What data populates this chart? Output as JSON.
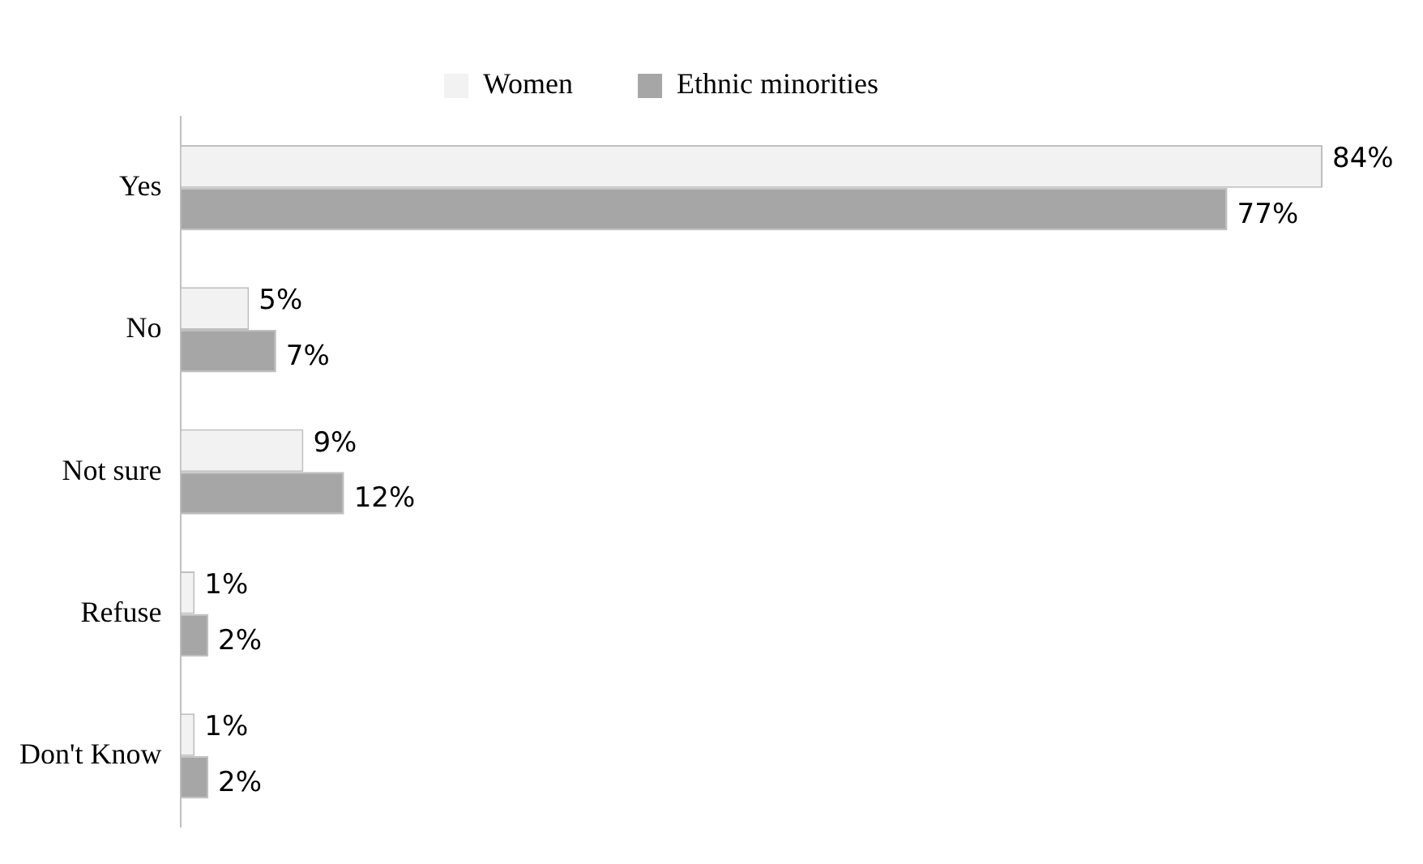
{
  "chart_data": {
    "type": "bar",
    "orientation": "horizontal",
    "categories": [
      "Yes",
      "No",
      "Not sure",
      "Refuse",
      "Don't Know"
    ],
    "series": [
      {
        "name": "Women",
        "color": "#f2f2f2",
        "values": [
          84,
          5,
          9,
          1,
          1
        ],
        "value_labels": [
          "84%",
          "5%",
          "9%",
          "1%",
          "1%"
        ]
      },
      {
        "name": "Ethnic minorities",
        "color": "#a6a6a6",
        "values": [
          77,
          7,
          12,
          2,
          2
        ],
        "value_labels": [
          "77%",
          "7%",
          "12%",
          "2%",
          "2%"
        ]
      }
    ],
    "legend": "top"
  }
}
